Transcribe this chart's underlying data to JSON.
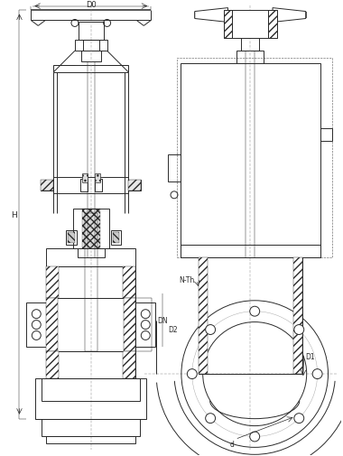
{
  "bg_color": "#ffffff",
  "line_color": "#2a2a2a",
  "lw": 0.7,
  "lw_thin": 0.35,
  "lw_thick": 1.1,
  "lw_dash": 0.45,
  "fig_width": 3.8,
  "fig_height": 5.06,
  "labels": {
    "D0": "D0",
    "H": "H",
    "DN": "DN",
    "D2": "D2",
    "d": "d",
    "D1": "D1",
    "N_Th": "N-Th"
  }
}
